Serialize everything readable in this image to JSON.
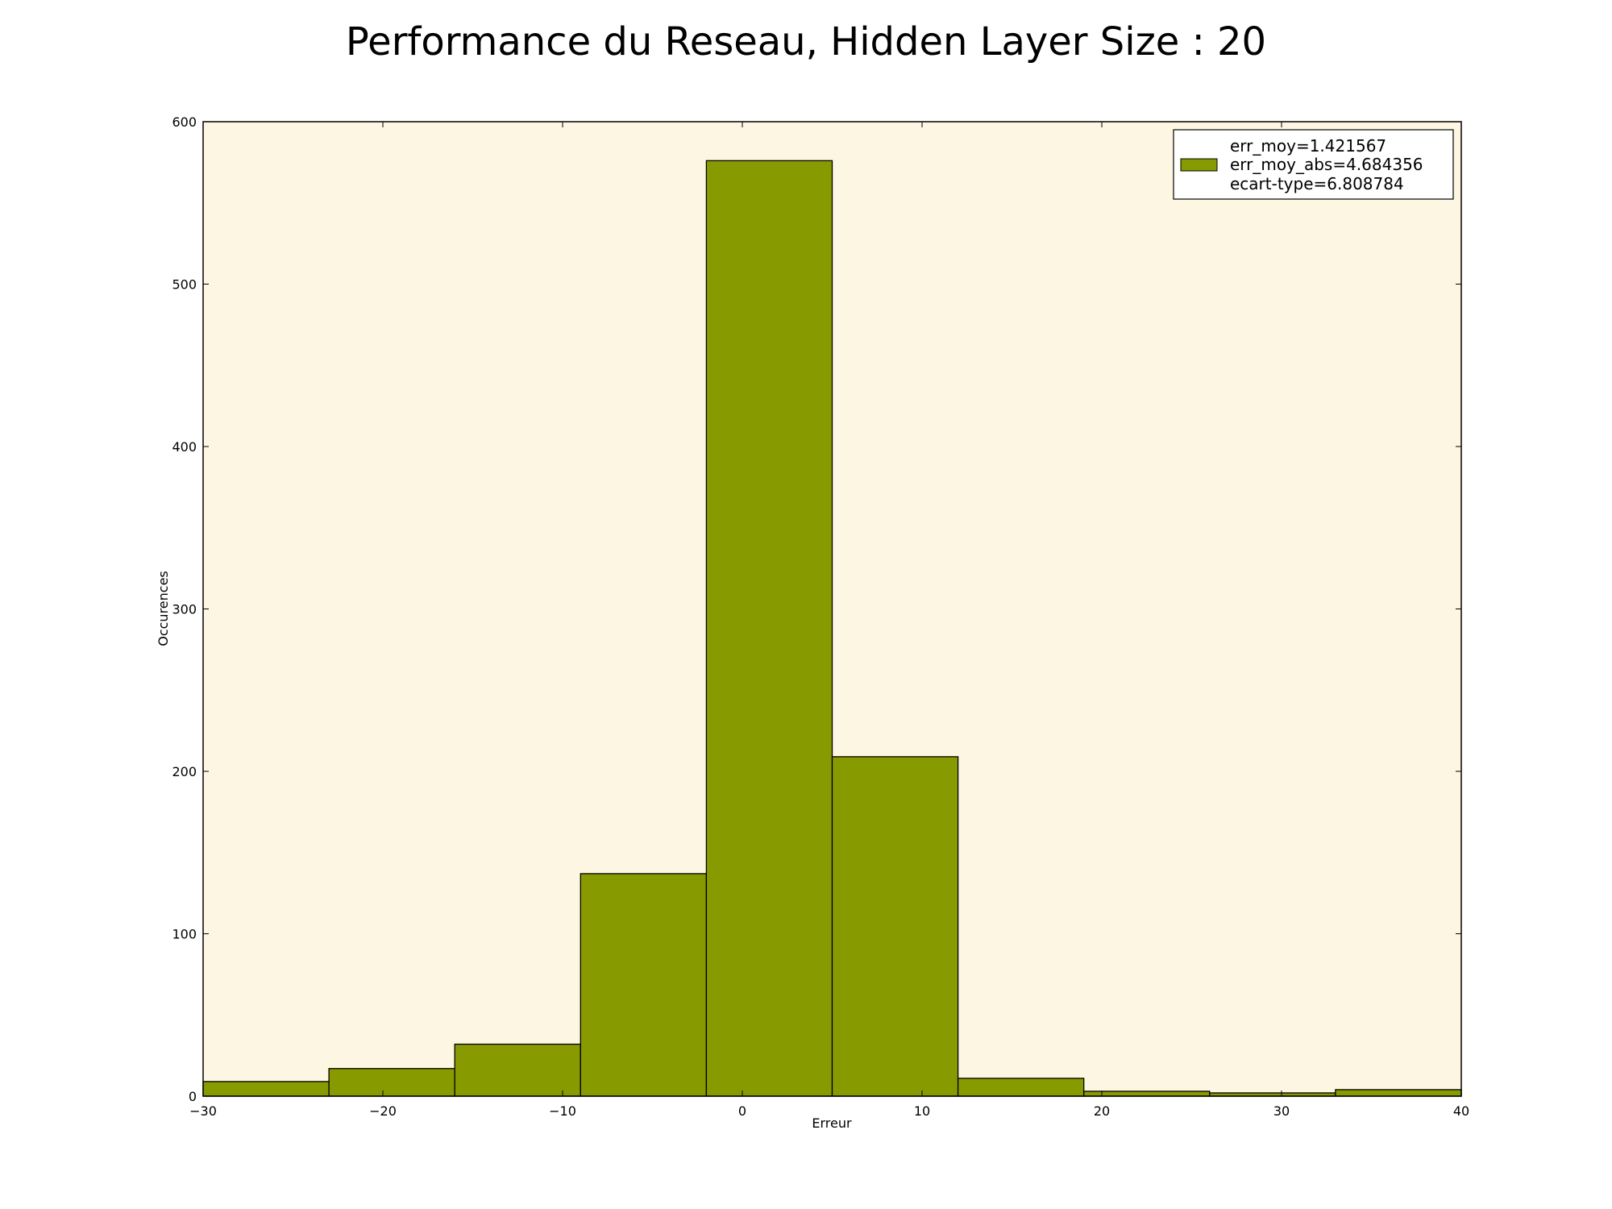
{
  "chart_data": {
    "type": "bar",
    "title": "Performance du Reseau, Hidden Layer Size : 20",
    "xlabel": "Erreur",
    "ylabel": "Occurences",
    "xlim": [
      -30,
      40
    ],
    "ylim": [
      0,
      600
    ],
    "x_ticks": [
      -30,
      -20,
      -10,
      0,
      10,
      20,
      30,
      40
    ],
    "x_tick_labels": [
      "−30",
      "−20",
      "−10",
      "0",
      "10",
      "20",
      "30",
      "40"
    ],
    "y_ticks": [
      0,
      100,
      200,
      300,
      400,
      500,
      600
    ],
    "y_tick_labels": [
      "0",
      "100",
      "200",
      "300",
      "400",
      "500",
      "600"
    ],
    "bin_edges": [
      -30,
      -23,
      -16,
      -9,
      -2,
      5,
      12,
      19,
      26,
      33,
      40
    ],
    "values": [
      9,
      17,
      32,
      137,
      576,
      209,
      11,
      3,
      2,
      4
    ],
    "grid": false,
    "legend": {
      "placement": "top-right",
      "entries": [
        "err_moy=1.421567",
        "err_moy_abs=4.684356",
        "ecart-type=6.808784"
      ]
    },
    "colors": {
      "bar_fill": "#879b00",
      "bar_edge": "#000000",
      "plot_background": "#fdf6e3",
      "figure_background": "#ffffff"
    }
  }
}
